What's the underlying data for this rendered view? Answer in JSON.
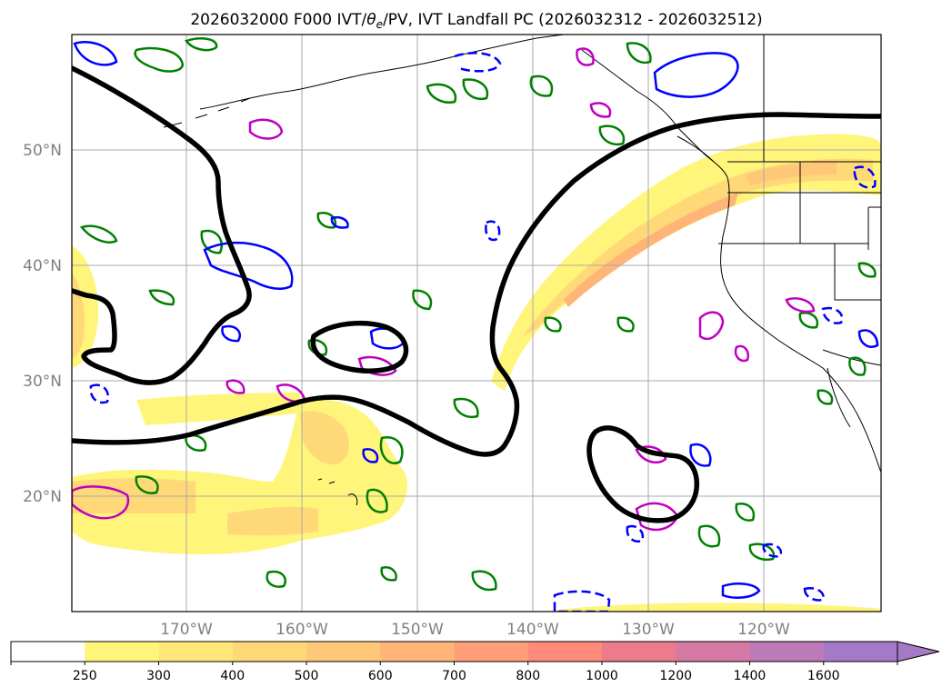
{
  "title": {
    "prefix": "2026032000 F000 IVT/",
    "theta": "θ",
    "theta_sub": "e",
    "suffix": "/PV, IVT Landfall PC (2026032312 - 2026032512)"
  },
  "axes": {
    "lat_labels": [
      "50°N",
      "40°N",
      "30°N",
      "20°N"
    ],
    "lon_labels": [
      "170°W",
      "160°W",
      "150°W",
      "140°W",
      "130°W",
      "120°W"
    ]
  },
  "colorbar": {
    "labels": [
      "250",
      "300",
      "400",
      "500",
      "600",
      "700",
      "800",
      "1000",
      "1200",
      "1400",
      "1600"
    ],
    "colors": [
      "#ffffff",
      "#fff57a",
      "#ffe878",
      "#ffd878",
      "#ffc878",
      "#ffb478",
      "#ff9e78",
      "#ff8a7c",
      "#ec7c8c",
      "#d47aa4",
      "#bc7ab8",
      "#a47ac8"
    ]
  }
}
